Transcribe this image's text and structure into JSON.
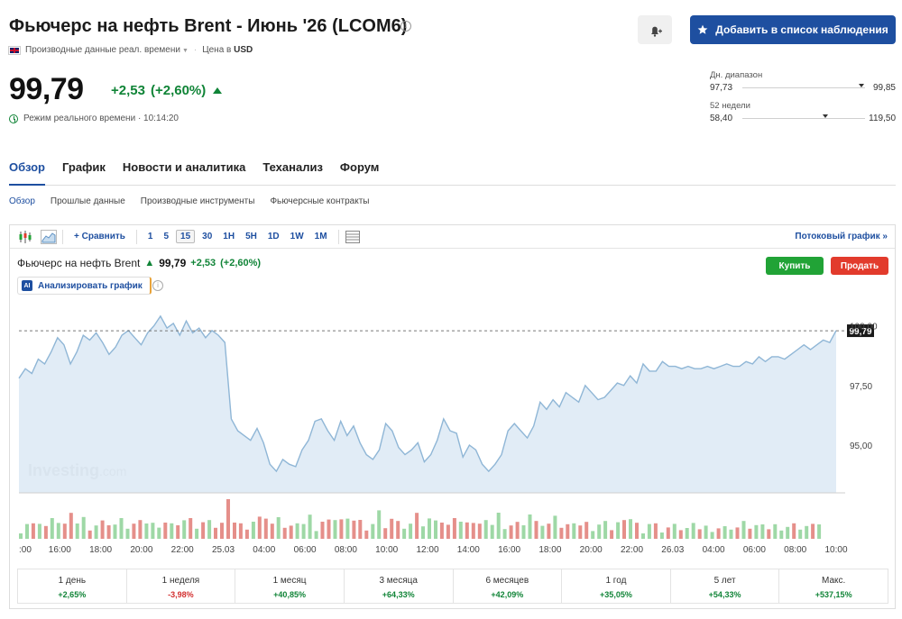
{
  "header": {
    "title": "Фьючерс на нефть Brent - Июнь '26 (LCOM6)",
    "data_type": "Производные данные реал. времени",
    "currency_label": "Цена в",
    "currency": "USD",
    "watchlist_label": "Добавить в список наблюдения"
  },
  "quote": {
    "price": "99,79",
    "change": "+2,53",
    "change_pct": "(+2,60%)",
    "realtime": "Режим реального времени · 10:14:20"
  },
  "ranges": {
    "day": {
      "label": "Дн. диапазон",
      "low": "97,73",
      "high": "99,85",
      "position": 0.97
    },
    "week52": {
      "label": "52 недели",
      "low": "58,40",
      "high": "119,50",
      "position": 0.68
    }
  },
  "tabs": [
    "Обзор",
    "График",
    "Новости и аналитика",
    "Теханализ",
    "Форум"
  ],
  "subtabs": [
    "Обзор",
    "Прошлые данные",
    "Производные инструменты",
    "Фьючерсные контракты"
  ],
  "toolbar": {
    "compare": "Сравнить",
    "intervals": [
      "1",
      "5",
      "15",
      "30",
      "1H",
      "5H",
      "1D",
      "1W",
      "1M"
    ],
    "selected_interval": "15",
    "stream": "Потоковый график"
  },
  "chart_header": {
    "name": "Фьючерс на нефть Brent",
    "price": "99,79",
    "change": "+2,53",
    "change_pct": "(+2,60%)",
    "buy": "Купить",
    "sell": "Продать",
    "analyze": "Анализировать график",
    "ai_badge": "AI"
  },
  "chart_data": {
    "type": "area",
    "watermark": "Investing",
    "watermark_suffix": ".com",
    "x_labels": [
      ":00",
      "16:00",
      "18:00",
      "20:00",
      "22:00",
      "25.03",
      "04:00",
      "06:00",
      "08:00",
      "10:00",
      "12:00",
      "14:00",
      "16:00",
      "18:00",
      "20:00",
      "22:00",
      "26.03",
      "04:00",
      "06:00",
      "08:00",
      "10:00"
    ],
    "y_ticks": [
      95.0,
      97.5,
      100.0
    ],
    "y_tick_labels": [
      "95,00",
      "97,50",
      "100,00"
    ],
    "ylim": [
      93.0,
      101.0
    ],
    "last_value": 99.79,
    "last_value_label": "99,79",
    "prices": [
      97.8,
      98.2,
      98.0,
      98.6,
      98.4,
      98.9,
      99.5,
      99.2,
      98.4,
      98.9,
      99.6,
      99.4,
      99.7,
      99.3,
      98.8,
      99.1,
      99.6,
      99.8,
      99.5,
      99.2,
      99.7,
      100.0,
      100.4,
      99.9,
      100.1,
      99.6,
      100.2,
      99.7,
      99.9,
      99.5,
      99.8,
      99.6,
      99.3,
      96.1,
      95.6,
      95.4,
      95.2,
      95.7,
      95.1,
      94.2,
      93.9,
      94.4,
      94.2,
      94.1,
      94.8,
      95.2,
      96.0,
      96.1,
      95.6,
      95.2,
      96.0,
      95.4,
      95.8,
      95.1,
      94.6,
      94.4,
      94.8,
      95.9,
      95.6,
      94.9,
      94.6,
      94.8,
      95.1,
      94.3,
      94.6,
      95.2,
      96.1,
      95.6,
      95.5,
      94.5,
      95.0,
      94.8,
      94.2,
      93.9,
      94.2,
      94.6,
      95.6,
      95.9,
      95.6,
      95.3,
      95.8,
      96.8,
      96.5,
      96.9,
      96.6,
      97.2,
      97.0,
      96.8,
      97.5,
      97.2,
      96.9,
      97.0,
      97.3,
      97.6,
      97.5,
      97.9,
      97.6,
      98.4,
      98.1,
      98.1,
      98.5,
      98.3,
      98.3,
      98.2,
      98.3,
      98.2,
      98.2,
      98.3,
      98.2,
      98.3,
      98.4,
      98.3,
      98.3,
      98.5,
      98.4,
      98.7,
      98.5,
      98.7,
      98.7,
      98.6,
      98.8,
      99.0,
      99.2,
      99.0,
      99.2,
      99.4,
      99.3,
      99.8
    ],
    "volume_bars": 130
  },
  "performance": [
    {
      "label": "1 день",
      "value": "+2,65%",
      "dir": "pos"
    },
    {
      "label": "1 неделя",
      "value": "-3,98%",
      "dir": "neg"
    },
    {
      "label": "1 месяц",
      "value": "+40,85%",
      "dir": "pos"
    },
    {
      "label": "3 месяца",
      "value": "+64,33%",
      "dir": "pos"
    },
    {
      "label": "6 месяцев",
      "value": "+42,09%",
      "dir": "pos"
    },
    {
      "label": "1 год",
      "value": "+35,05%",
      "dir": "pos"
    },
    {
      "label": "5 лет",
      "value": "+54,33%",
      "dir": "pos"
    },
    {
      "label": "Макс.",
      "value": "+537,15%",
      "dir": "pos"
    }
  ],
  "colors": {
    "accent": "#1e4fa0",
    "up": "#108437",
    "down": "#d32f2f",
    "area": "#dce9f4",
    "line": "#8fb6d6"
  }
}
